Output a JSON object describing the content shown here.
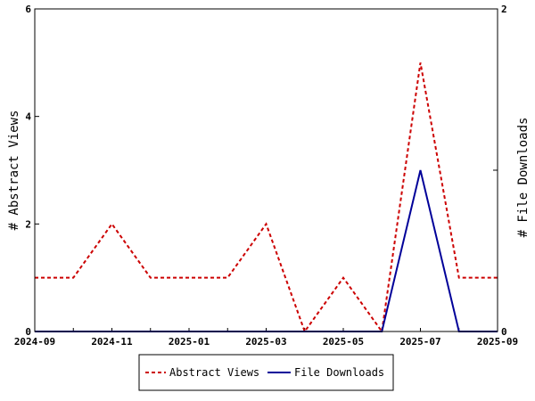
{
  "chart_data": {
    "type": "line",
    "x": [
      "2024-09",
      "2024-10",
      "2024-11",
      "2024-12",
      "2025-01",
      "2025-02",
      "2025-03",
      "2025-04",
      "2025-05",
      "2025-06",
      "2025-07",
      "2025-08",
      "2025-09"
    ],
    "x_tick_labels": [
      "2024-09",
      "2024-11",
      "2025-01",
      "2025-03",
      "2025-05",
      "2025-07",
      "2025-09"
    ],
    "y_left": {
      "label": "# Abstract Views",
      "range": [
        0,
        6
      ],
      "ticks": [
        "0",
        "2",
        "4",
        "6"
      ]
    },
    "y_right": {
      "label": "# File Downloads",
      "range": [
        0,
        2
      ],
      "ticks": [
        "0",
        "1",
        "2"
      ]
    },
    "series": [
      {
        "name": "Abstract Views",
        "axis": "left",
        "color": "#cc0000",
        "style": "dashed",
        "values": [
          1,
          1,
          2,
          1,
          1,
          1,
          2,
          0,
          1,
          0,
          5,
          1,
          1
        ]
      },
      {
        "name": "File Downloads",
        "axis": "right",
        "color": "#000099",
        "style": "solid",
        "values": [
          0,
          0,
          0,
          0,
          0,
          0,
          0,
          0,
          0,
          0,
          1,
          0,
          0
        ]
      }
    ],
    "legend": "bottom-center",
    "grid": false
  }
}
